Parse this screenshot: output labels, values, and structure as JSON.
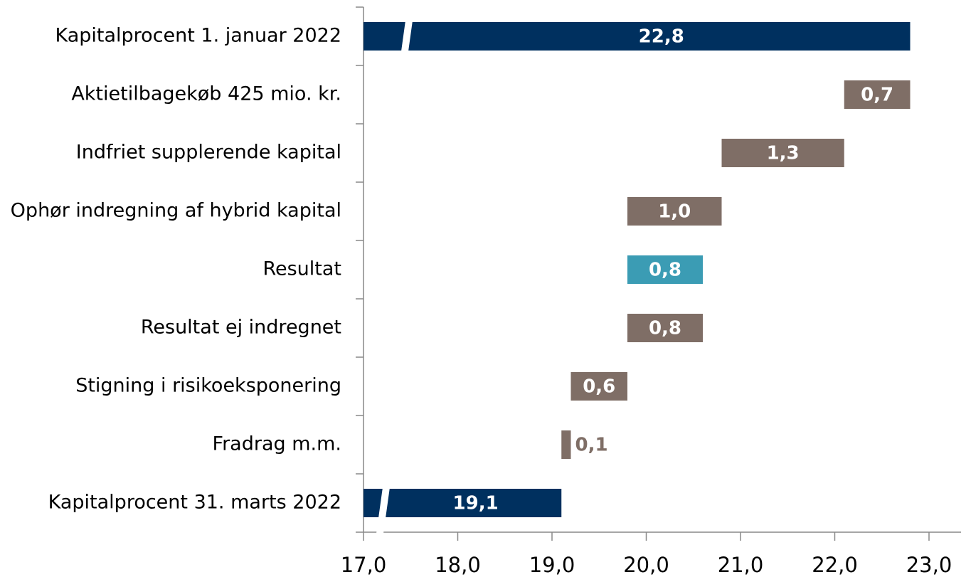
{
  "chart_data": {
    "type": "waterfall",
    "categories": [
      "Kapitalprocent 1. januar 2022",
      "Aktietilbagekøb 425 mio. kr.",
      "Indfriet supplerende kapital",
      "Ophør indregning af hybrid kapital",
      "Resultat",
      "Resultat ej indregnet",
      "Stigning i risikoeksponering",
      "Fradrag m.m.",
      "Kapitalprocent 31. marts 2022"
    ],
    "values": [
      22.8,
      0.7,
      1.3,
      1.0,
      0.8,
      0.8,
      0.6,
      0.1,
      19.1
    ],
    "value_labels": [
      "22,8",
      "0,7",
      "1,3",
      "1,0",
      "0,8",
      "0,8",
      "0,6",
      "0,1",
      "19,1"
    ],
    "measure": [
      "total",
      "decrease",
      "decrease",
      "decrease",
      "increase",
      "decrease",
      "decrease",
      "decrease",
      "total"
    ],
    "colors": [
      "#00305f",
      "#7f6e66",
      "#7f6e66",
      "#7f6e66",
      "#3b9cb4",
      "#7f6e66",
      "#7f6e66",
      "#7f6e66",
      "#00305f"
    ],
    "xlim": [
      17,
      23
    ],
    "xticks": [
      {
        "value": 17,
        "label": "17,0"
      },
      {
        "value": 18,
        "label": "18,0"
      },
      {
        "value": 19,
        "label": "19,0"
      },
      {
        "value": 20,
        "label": "20,0"
      },
      {
        "value": 21,
        "label": "21,0"
      },
      {
        "value": 22,
        "label": "22,0"
      },
      {
        "value": 23,
        "label": "23,0"
      }
    ]
  }
}
